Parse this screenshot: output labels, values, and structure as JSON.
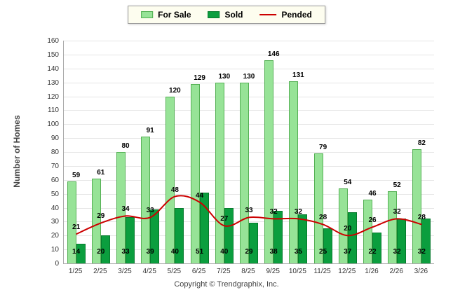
{
  "chart_data": {
    "type": "bar",
    "title": "",
    "categories": [
      "1/25",
      "2/25",
      "3/25",
      "4/25",
      "5/25",
      "6/25",
      "7/25",
      "8/25",
      "9/25",
      "10/25",
      "11/25",
      "12/25",
      "1/26",
      "2/26",
      "3/26"
    ],
    "series": [
      {
        "name": "For Sale",
        "type": "bar",
        "color": "#97e397",
        "values": [
          59,
          61,
          80,
          91,
          120,
          129,
          130,
          130,
          146,
          131,
          79,
          54,
          46,
          52,
          82
        ]
      },
      {
        "name": "Sold",
        "type": "bar",
        "color": "#0b9e3e",
        "values": [
          14,
          20,
          33,
          39,
          40,
          51,
          40,
          29,
          38,
          35,
          25,
          37,
          22,
          32,
          32
        ]
      },
      {
        "name": "Pended",
        "type": "line",
        "color": "#cc0000",
        "values": [
          21,
          29,
          34,
          33,
          48,
          44,
          27,
          33,
          32,
          32,
          28,
          20,
          26,
          32,
          28
        ]
      }
    ],
    "xlabel": "",
    "ylabel": "Number of Homes",
    "ylim": [
      0,
      160
    ],
    "ytick_step": 10,
    "grid": true,
    "legend_position": "top"
  },
  "footer": {
    "copyright": "Copyright © Trendgraphix, Inc."
  }
}
